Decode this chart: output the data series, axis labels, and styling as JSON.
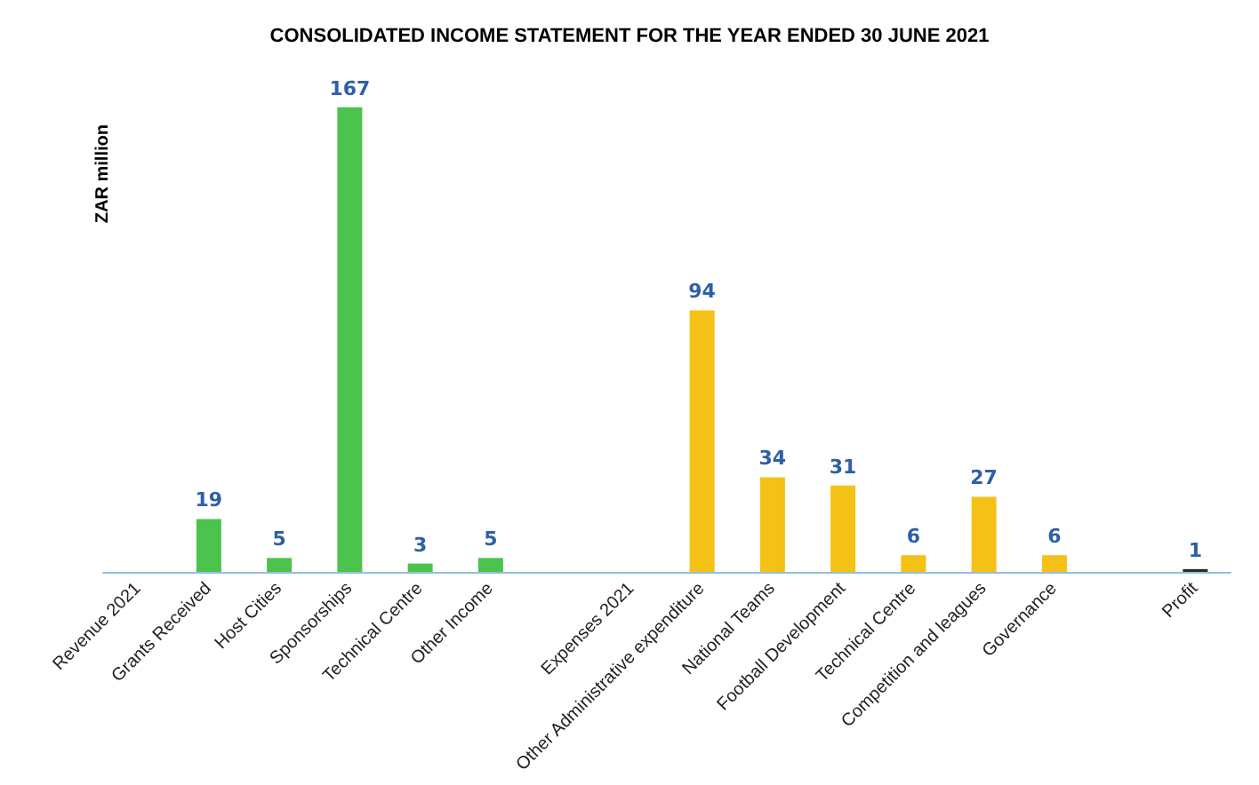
{
  "chart_data": {
    "type": "bar",
    "title": "CONSOLIDATED INCOME STATEMENT FOR THE YEAR ENDED 30 JUNE 2021",
    "ylabel": "ZAR million",
    "categories": [
      "Revenue 2021",
      "Grants Received",
      "Host Cities",
      "Sponsorships",
      "Technical Centre",
      "Other Income",
      null,
      "Expenses 2021",
      "Other Administrative expenditure",
      "National Teams",
      "Football Development",
      "Technical Centre",
      "Competition and leagues",
      "Governance",
      null,
      "Profit"
    ],
    "values": [
      null,
      19,
      5,
      167,
      3,
      5,
      null,
      null,
      94,
      34,
      31,
      6,
      27,
      6,
      null,
      1
    ],
    "colors": [
      "#4cc34c",
      "#4cc34c",
      "#4cc34c",
      "#4cc34c",
      "#4cc34c",
      "#4cc34c",
      "#4cc34c",
      "#f5c116",
      "#f5c116",
      "#f5c116",
      "#f5c116",
      "#f5c116",
      "#f5c116",
      "#f5c116",
      "#f5c116",
      "#2b2b2b"
    ],
    "data_labels": true,
    "grid": false,
    "tick_labels": "x"
  }
}
